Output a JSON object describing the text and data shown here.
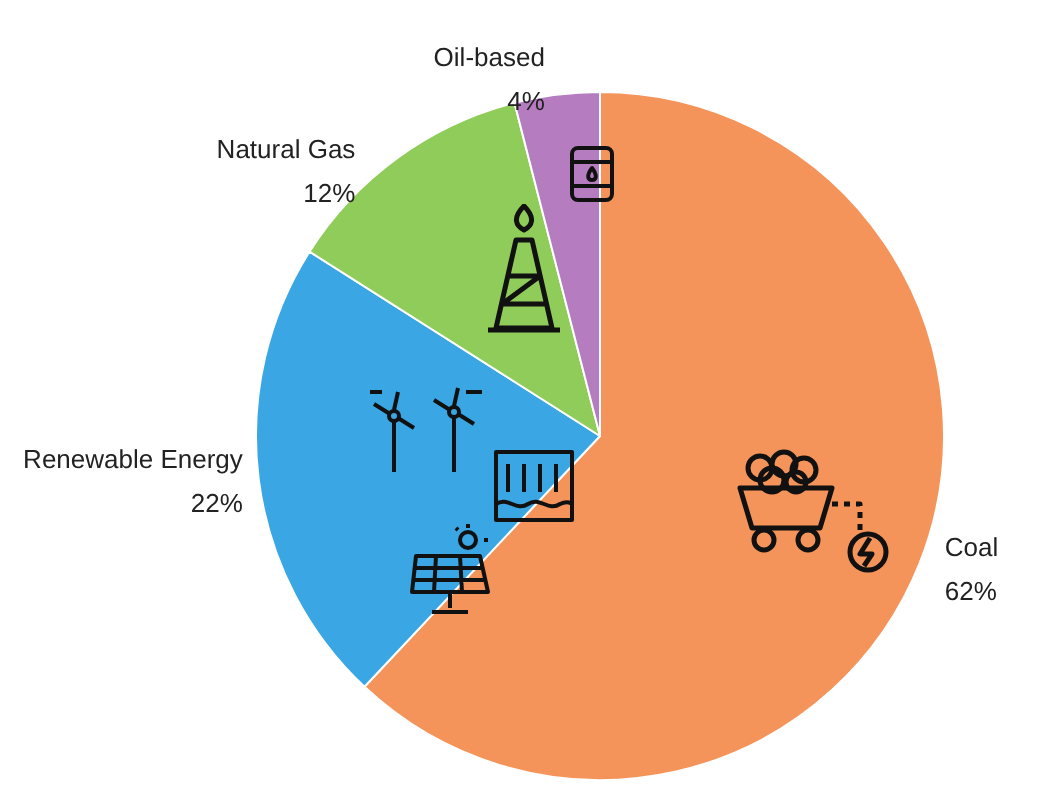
{
  "chart_data": {
    "type": "pie",
    "categories": [
      "Coal",
      "Renewable Energy",
      "Natural Gas",
      "Oil-based"
    ],
    "values": [
      62,
      22,
      12,
      4
    ],
    "colors": [
      "#f4945a",
      "#3aa6e3",
      "#8fcc5a",
      "#b57cc0"
    ],
    "value_labels": [
      "62%",
      "22%",
      "12%",
      "4%"
    ],
    "legend": false
  }
}
